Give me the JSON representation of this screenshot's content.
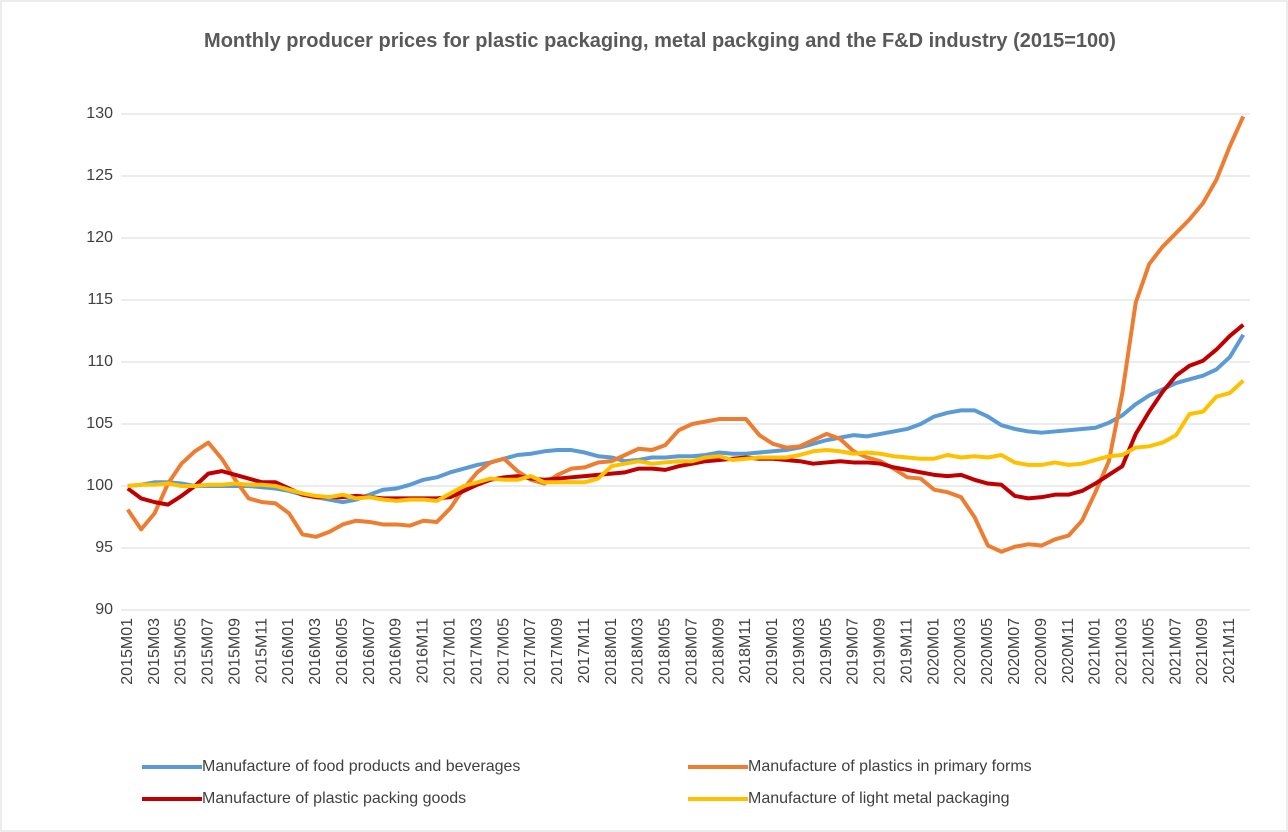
{
  "chart_data": {
    "type": "line",
    "title": "Monthly producer prices for plastic packaging, metal packging and the F&D industry (2015=100)",
    "categories": [
      "2015M01",
      null,
      "2015M03",
      null,
      "2015M05",
      null,
      "2015M07",
      null,
      "2015M09",
      null,
      "2015M11",
      null,
      "2016M01",
      null,
      "2016M03",
      null,
      "2016M05",
      null,
      "2016M07",
      null,
      "2016M09",
      null,
      "2016M11",
      null,
      "2017M01",
      null,
      "2017M03",
      null,
      "2017M05",
      null,
      "2017M07",
      null,
      "2017M09",
      null,
      "2017M11",
      null,
      "2018M01",
      null,
      "2018M03",
      null,
      "2018M05",
      null,
      "2018M07",
      null,
      "2018M09",
      null,
      "2018M11",
      null,
      "2019M01",
      null,
      "2019M03",
      null,
      "2019M05",
      null,
      "2019M07",
      null,
      "2019M09",
      null,
      "2019M11",
      null,
      "2020M01",
      null,
      "2020M03",
      null,
      "2020M05",
      null,
      "2020M07",
      null,
      "2020M09",
      null,
      "2020M11",
      null,
      "2021M01",
      null,
      "2021M03",
      null,
      "2021M05",
      null,
      "2021M07",
      null,
      "2021M09",
      null,
      "2021M11",
      null
    ],
    "series": [
      {
        "name": "Manufacture of food products and beverages",
        "color": "#5b9bd5",
        "values": [
          100,
          100.1,
          100.3,
          100.3,
          100.2,
          100,
          100,
          100,
          100,
          100,
          99.9,
          99.8,
          99.6,
          99.3,
          99.1,
          98.9,
          98.7,
          98.9,
          99.3,
          99.7,
          99.8,
          100.1,
          100.5,
          100.7,
          101.1,
          101.4,
          101.7,
          101.9,
          102.2,
          102.5,
          102.6,
          102.8,
          102.9,
          102.9,
          102.7,
          102.4,
          102.3,
          102,
          102.1,
          102.3,
          102.3,
          102.4,
          102.4,
          102.5,
          102.7,
          102.6,
          102.6,
          102.7,
          102.8,
          102.9,
          103.1,
          103.4,
          103.7,
          103.9,
          104.1,
          104,
          104.2,
          104.4,
          104.6,
          105,
          105.6,
          105.9,
          106.1,
          106.1,
          105.6,
          104.9,
          104.6,
          104.4,
          104.3,
          104.4,
          104.5,
          104.6,
          104.7,
          105.1,
          105.7,
          106.6,
          107.3,
          107.8,
          108.3,
          108.6,
          108.9,
          109.4,
          110.4,
          112.2
        ]
      },
      {
        "name": "Manufacture of plastics in primary forms",
        "color": "#ed7d31",
        "values": [
          98.1,
          96.5,
          97.8,
          100.2,
          101.8,
          102.8,
          103.5,
          102.2,
          100.5,
          99,
          98.7,
          98.6,
          97.8,
          96.1,
          95.9,
          96.3,
          96.9,
          97.2,
          97.1,
          96.9,
          96.9,
          96.8,
          97.2,
          97.1,
          98.2,
          99.8,
          101.1,
          101.9,
          102.2,
          101.2,
          100.5,
          100.2,
          100.9,
          101.4,
          101.5,
          101.9,
          102,
          102.5,
          103,
          102.9,
          103.3,
          104.5,
          105,
          105.2,
          105.4,
          105.4,
          105.4,
          104.1,
          103.4,
          103.1,
          103.2,
          103.7,
          104.2,
          103.8,
          102.8,
          102.3,
          102,
          101.4,
          100.7,
          100.6,
          99.7,
          99.5,
          99.1,
          97.5,
          95.2,
          94.7,
          95.1,
          95.3,
          95.2,
          95.7,
          96,
          97.2,
          99.5,
          102,
          107.5,
          114.8,
          117.9,
          119.3,
          120.4,
          121.5,
          122.8,
          124.7,
          127.4,
          129.8
        ]
      },
      {
        "name": "Manufacture of plastic packing goods",
        "color": "#c00000",
        "values": [
          99.8,
          99,
          98.7,
          98.5,
          99.2,
          100,
          101,
          101.2,
          100.9,
          100.6,
          100.3,
          100.3,
          99.8,
          99.3,
          99.1,
          99.1,
          99.1,
          99.2,
          99.1,
          99,
          99,
          99,
          99,
          99,
          99.1,
          99.6,
          100.1,
          100.5,
          100.7,
          100.8,
          100.6,
          100.5,
          100.6,
          100.7,
          100.8,
          100.9,
          101,
          101.1,
          101.4,
          101.4,
          101.3,
          101.6,
          101.8,
          102,
          102.1,
          102.2,
          102.3,
          102.2,
          102.2,
          102.1,
          102,
          101.8,
          101.9,
          102,
          101.9,
          101.9,
          101.8,
          101.5,
          101.3,
          101.1,
          100.9,
          100.8,
          100.9,
          100.5,
          100.2,
          100.1,
          99.2,
          99,
          99.1,
          99.3,
          99.3,
          99.6,
          100.2,
          100.9,
          101.6,
          104.2,
          106,
          107.6,
          108.9,
          109.7,
          110.1,
          111,
          112.1,
          113
        ]
      },
      {
        "name": "Manufacture of light metal packaging",
        "color": "#ffc000",
        "values": [
          100,
          100.1,
          100.1,
          100.2,
          100,
          100,
          100.1,
          100.1,
          100.2,
          100.1,
          100.1,
          100,
          99.7,
          99.4,
          99.2,
          99.1,
          99.3,
          99,
          99.1,
          98.9,
          98.8,
          98.9,
          98.9,
          98.8,
          99.4,
          100,
          100.3,
          100.6,
          100.5,
          100.5,
          100.8,
          100.3,
          100.3,
          100.3,
          100.3,
          100.6,
          101.6,
          101.8,
          102,
          101.8,
          101.9,
          102,
          102,
          102.3,
          102.4,
          102.1,
          102.2,
          102.3,
          102.3,
          102.3,
          102.5,
          102.8,
          102.9,
          102.8,
          102.6,
          102.7,
          102.6,
          102.4,
          102.3,
          102.2,
          102.2,
          102.5,
          102.3,
          102.4,
          102.3,
          102.5,
          101.9,
          101.7,
          101.7,
          101.9,
          101.7,
          101.8,
          102.1,
          102.4,
          102.5,
          103.1,
          103.2,
          103.5,
          104.1,
          105.8,
          106,
          107.2,
          107.5,
          108.5
        ]
      }
    ],
    "ylim": [
      90,
      130
    ],
    "yticks": [
      90,
      95,
      100,
      105,
      110,
      115,
      120,
      125,
      130
    ],
    "grid": true,
    "legend": "bottom"
  }
}
